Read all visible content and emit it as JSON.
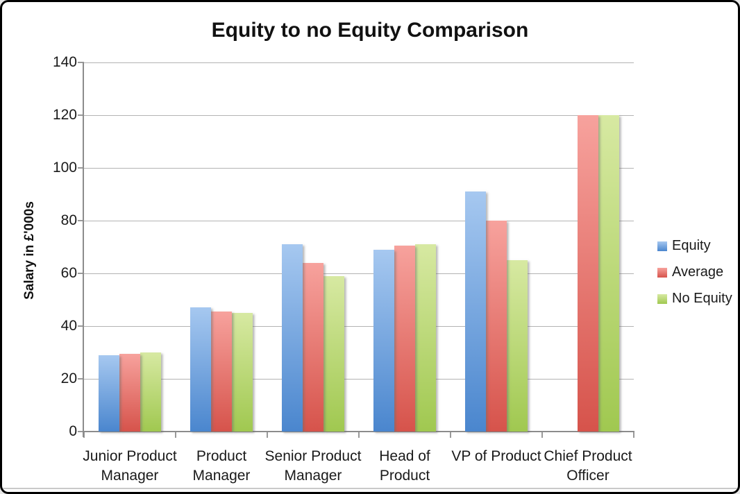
{
  "frame": {
    "background": "#FFFFFF",
    "border_color": "#000000"
  },
  "chart_data": {
    "type": "bar",
    "title": "Equity to no Equity Comparison",
    "ylabel": "Salary in £'000s",
    "xlabel": "",
    "ylim": [
      0,
      140
    ],
    "y_ticks": [
      0,
      20,
      40,
      60,
      80,
      100,
      120,
      140
    ],
    "grid": true,
    "legend_position": "right",
    "categories": [
      "Junior Product Manager",
      "Product Manager",
      "Senior Product Manager",
      "Head of Product",
      "VP of Product",
      "Chief Product Officer"
    ],
    "category_label_lines": [
      [
        "Junior Product",
        "Manager"
      ],
      [
        "Product",
        "Manager"
      ],
      [
        "Senior Product",
        "Manager"
      ],
      [
        "Head of",
        "Product"
      ],
      [
        "VP of Product"
      ],
      [
        "Chief Product",
        "Officer"
      ]
    ],
    "series": [
      {
        "name": "Equity",
        "color_top": "#A6C8F0",
        "color_bottom": "#4A86CE",
        "values": [
          29,
          47,
          71,
          69,
          91,
          null
        ]
      },
      {
        "name": "Average",
        "color_top": "#F7A29D",
        "color_bottom": "#D6534B",
        "values": [
          29.5,
          45.5,
          64,
          70.5,
          80,
          120
        ]
      },
      {
        "name": "No Equity",
        "color_top": "#D7E9A2",
        "color_bottom": "#A0C850",
        "values": [
          30,
          45,
          59,
          71,
          65,
          120
        ]
      }
    ],
    "axis_color": "#8C8C8C",
    "gridline_color": "#B3B3B3",
    "text_color": "#1A1A1A"
  }
}
